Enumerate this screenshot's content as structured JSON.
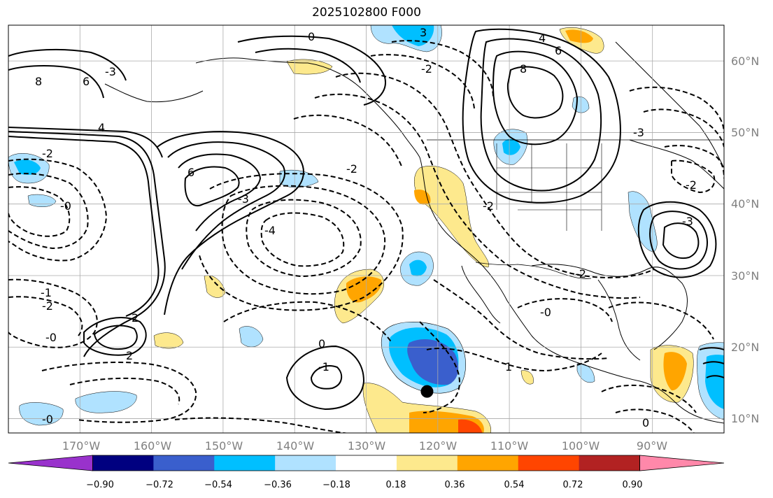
{
  "title": "2025102800 F000",
  "map": {
    "lat_labels": [
      "60°N",
      "50°N",
      "40°N",
      "30°N",
      "20°N",
      "10°N"
    ],
    "lon_labels": [
      "170°W",
      "160°W",
      "150°W",
      "140°W",
      "130°W",
      "120°W",
      "110°W",
      "100°W",
      "90°W"
    ],
    "contour_labels": [
      "0",
      "3",
      "4",
      "6",
      "8",
      "-2",
      "6",
      "-3",
      "6",
      "8",
      "4",
      "-2",
      "-2",
      "-0",
      "-3",
      "-4",
      "-2",
      "2",
      "-2",
      "-0",
      "0",
      "-1",
      "-2",
      "-0",
      "1",
      "2",
      "-3",
      "-2",
      "-1",
      "-0",
      "0",
      "-3"
    ],
    "marker": {
      "name": "storm-center",
      "lon": -121.5,
      "lat": 13.8
    }
  },
  "colorbar": {
    "ticks": [
      "−0.90",
      "−0.72",
      "−0.54",
      "−0.36",
      "−0.18",
      "0.18",
      "0.36",
      "0.54",
      "0.72",
      "0.90"
    ],
    "colors": [
      "#9932cc",
      "#000080",
      "#3a5fcd",
      "#00bfff",
      "#b0e2ff",
      "#ffffff",
      "#fde98d",
      "#ffa500",
      "#ff4500",
      "#b22222",
      "#ff88aa"
    ]
  },
  "colors": {
    "neg_light": "#b0e2ff",
    "neg_mid": "#00bfff",
    "neg_dark": "#3a5fcd",
    "pos_light": "#fde98d",
    "pos_mid": "#ffa500",
    "pos_dark": "#ff4500"
  }
}
